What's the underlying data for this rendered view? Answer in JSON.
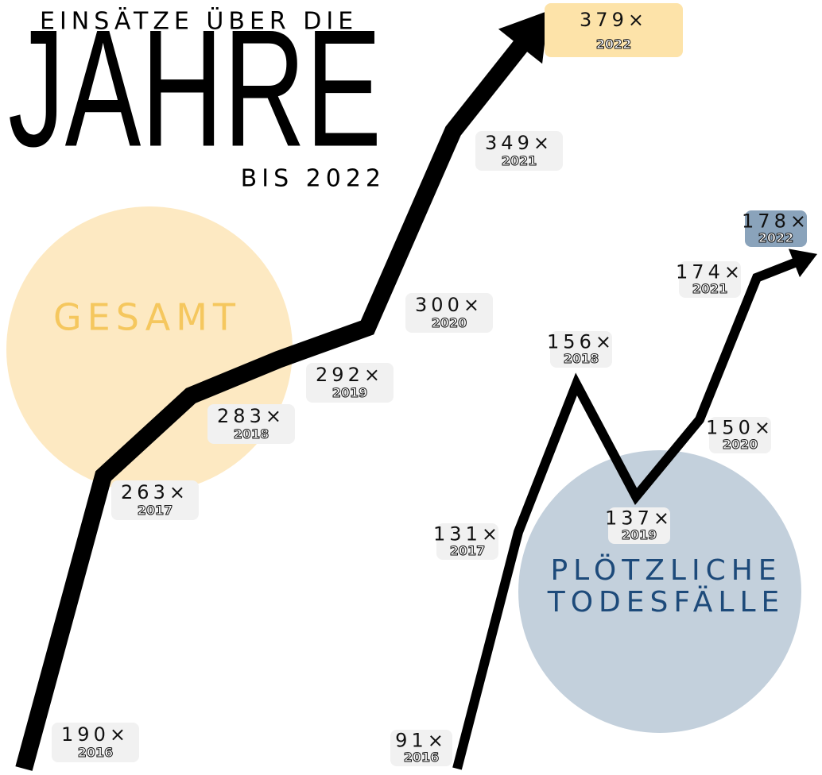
{
  "chart_data": {
    "type": "line",
    "title_top": "EINSÄTZE ÜBER DIE",
    "title": "JAHRE",
    "title_bottom": "BIS 2022",
    "categories": [
      "2016",
      "2017",
      "2018",
      "2019",
      "2020",
      "2021",
      "2022"
    ],
    "series": [
      {
        "name": "GESAMT",
        "color": "#000000",
        "name_color": "#f5c75e",
        "circle_color": "#fde9c2",
        "highlight_color": "#fde3a9",
        "values": [
          190,
          263,
          283,
          292,
          300,
          349,
          379
        ],
        "value_labels": [
          "190×",
          "263×",
          "283×",
          "292×",
          "300×",
          "349×",
          "379×"
        ]
      },
      {
        "name": "PLÖTZLICHE TODESFÄLLE",
        "color": "#000000",
        "name_color": "#1d4a7a",
        "circle_color": "#c3d0dc",
        "highlight_color": "#8aa3bb",
        "values": [
          91,
          131,
          156,
          137,
          150,
          174,
          178
        ],
        "value_labels": [
          "91×",
          "131×",
          "156×",
          "137×",
          "150×",
          "174×",
          "178×"
        ]
      }
    ]
  }
}
